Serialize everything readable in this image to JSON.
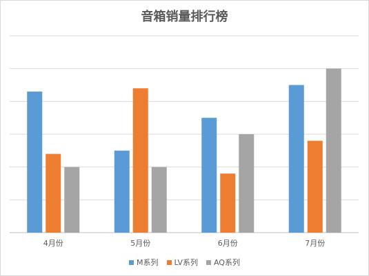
{
  "chart_data": {
    "type": "bar",
    "title": "音箱销量排行榜",
    "categories": [
      "4月份",
      "5月份",
      "6月份",
      "7月份"
    ],
    "series": [
      {
        "name": "M系列",
        "color": "#5b9bd5",
        "values": [
          4.3,
          2.5,
          3.5,
          4.5
        ]
      },
      {
        "name": "LV系列",
        "color": "#ed7d31",
        "values": [
          2.4,
          4.4,
          1.8,
          2.8
        ]
      },
      {
        "name": "AQ系列",
        "color": "#a5a5a5",
        "values": [
          2.0,
          2.0,
          3.0,
          5.0
        ]
      }
    ],
    "ylim": [
      0,
      6
    ],
    "grid": true,
    "legend_position": "bottom"
  }
}
